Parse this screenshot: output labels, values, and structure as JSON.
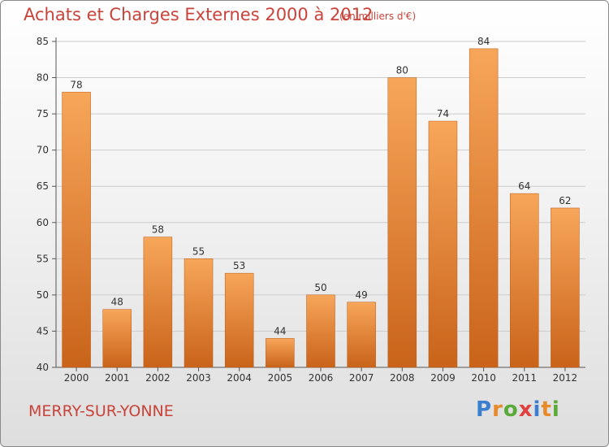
{
  "header": {
    "title": "Achats et Charges Externes 2000 à 2012",
    "subtitle": "(en milliers d'€)"
  },
  "footer": {
    "commune": "MERRY-SUR-YONNE",
    "brand_letters": [
      "P",
      "r",
      "o",
      "x",
      "i",
      "t",
      "i"
    ],
    "brand_colors": [
      "#3a7fd0",
      "#e8892a",
      "#5aaa3a",
      "#e04040",
      "#3a7fd0",
      "#e8892a",
      "#5aaa3a"
    ]
  },
  "colors": {
    "title": "#c9433a",
    "bar_top": "#f7a65a",
    "bar_bottom": "#c9631a",
    "axis": "#555555",
    "grid": "#cccccc",
    "text": "#333333"
  },
  "chart_data": {
    "type": "bar",
    "title": "Achats et Charges Externes 2000 à 2012",
    "subtitle": "(en milliers d'€)",
    "categories": [
      "2000",
      "2001",
      "2002",
      "2003",
      "2004",
      "2005",
      "2006",
      "2007",
      "2008",
      "2009",
      "2010",
      "2011",
      "2012"
    ],
    "values": [
      78,
      48,
      58,
      55,
      53,
      44,
      50,
      49,
      80,
      74,
      84,
      64,
      62
    ],
    "ylim": [
      40,
      85
    ],
    "yticks": [
      40,
      45,
      50,
      55,
      60,
      65,
      70,
      75,
      80,
      85
    ],
    "grid": true,
    "data_labels": true
  }
}
